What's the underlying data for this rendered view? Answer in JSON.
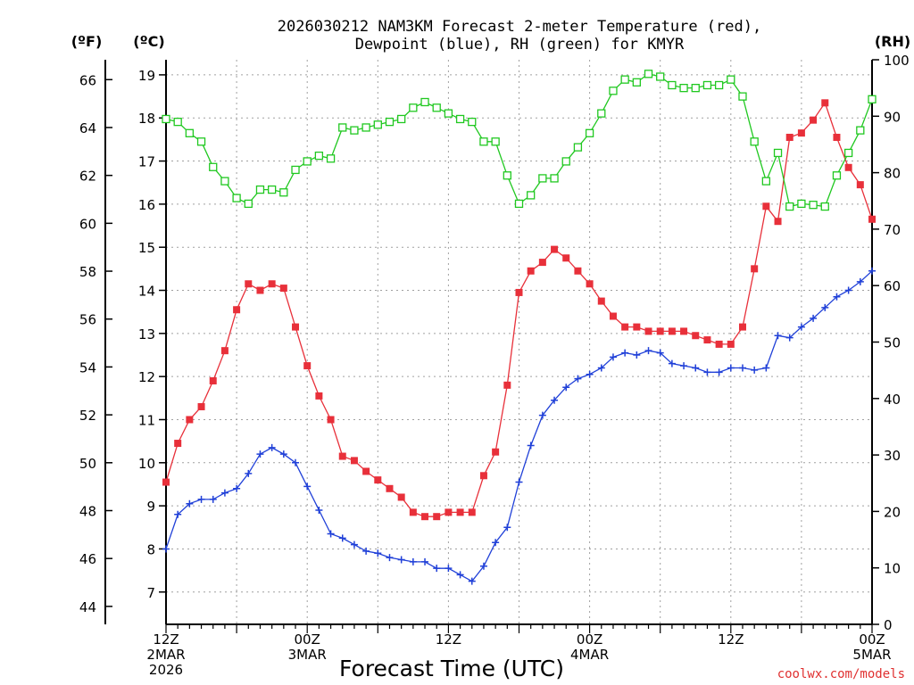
{
  "title_line1": "2026030212 NAM3KM Forecast 2-meter Temperature (red),",
  "title_line2": "Dewpoint (blue), RH (green) for KMYR",
  "xlabel": "Forecast Time (UTC)",
  "credit": "coolwx.com/models",
  "units": {
    "f": "(ºF)",
    "c": "(ºC)",
    "rh": "(RH)"
  },
  "colors": {
    "temp": "#e8303a",
    "dew": "#2040d8",
    "rh": "#20c820"
  },
  "chart_data": {
    "type": "line",
    "x_hours": [
      0,
      1,
      2,
      3,
      4,
      5,
      6,
      7,
      8,
      9,
      10,
      11,
      12,
      13,
      14,
      15,
      16,
      17,
      18,
      19,
      20,
      21,
      22,
      23,
      24,
      25,
      26,
      27,
      28,
      29,
      30,
      31,
      32,
      33,
      34,
      35,
      36,
      37,
      38,
      39,
      40,
      41,
      42,
      43,
      44,
      45,
      46,
      47,
      48,
      49,
      50,
      51,
      52,
      53,
      54,
      55,
      56,
      57,
      58,
      59,
      60
    ],
    "x_ticks": [
      {
        "hour": 0,
        "lines": [
          "12Z",
          "2MAR",
          "2026"
        ]
      },
      {
        "hour": 12,
        "lines": [
          "00Z",
          "3MAR"
        ]
      },
      {
        "hour": 24,
        "lines": [
          "12Z"
        ]
      },
      {
        "hour": 36,
        "lines": [
          "00Z",
          "4MAR"
        ]
      },
      {
        "hour": 48,
        "lines": [
          "12Z"
        ]
      },
      {
        "hour": 60,
        "lines": [
          "00Z",
          "5MAR"
        ]
      }
    ],
    "c_ticks": [
      7,
      8,
      9,
      10,
      11,
      12,
      13,
      14,
      15,
      16,
      17,
      18,
      19
    ],
    "f_ticks": [
      44,
      46,
      48,
      50,
      52,
      54,
      56,
      58,
      60,
      62,
      64,
      66
    ],
    "rh_ticks": [
      0,
      10,
      20,
      30,
      40,
      50,
      60,
      70,
      80,
      90,
      100
    ],
    "c_range": [
      6.25,
      19.35
    ],
    "rh_range": [
      0,
      100
    ],
    "series": [
      {
        "name": "Temperature",
        "axis": "C",
        "marker": "filled-square",
        "values": [
          9.55,
          10.45,
          11.0,
          11.3,
          11.9,
          12.6,
          13.55,
          14.15,
          14.0,
          14.15,
          14.05,
          13.15,
          12.25,
          11.55,
          11.0,
          10.15,
          10.05,
          9.8,
          9.6,
          9.4,
          9.2,
          8.85,
          8.75,
          8.75,
          8.85,
          8.85,
          8.85,
          9.7,
          10.25,
          11.8,
          13.95,
          14.45,
          14.65,
          14.95,
          14.75,
          14.45,
          14.15,
          13.75,
          13.4,
          13.15,
          13.15,
          13.05,
          13.05,
          13.05,
          13.05,
          12.95,
          12.85,
          12.75,
          12.75,
          13.15,
          14.5,
          15.95,
          15.6,
          17.55,
          17.65,
          17.95,
          18.35,
          17.55,
          16.85,
          16.45,
          15.65
        ]
      },
      {
        "name": "Dewpoint",
        "axis": "C",
        "marker": "plus",
        "values": [
          8.0,
          8.8,
          9.05,
          9.15,
          9.15,
          9.3,
          9.4,
          9.75,
          10.2,
          10.35,
          10.2,
          10.0,
          9.45,
          8.9,
          8.35,
          8.25,
          8.1,
          7.95,
          7.9,
          7.8,
          7.75,
          7.7,
          7.7,
          7.55,
          7.55,
          7.4,
          7.25,
          7.6,
          8.15,
          8.5,
          9.55,
          10.4,
          11.1,
          11.45,
          11.75,
          11.95,
          12.05,
          12.2,
          12.45,
          12.55,
          12.5,
          12.6,
          12.55,
          12.3,
          12.25,
          12.2,
          12.1,
          12.1,
          12.2,
          12.2,
          12.15,
          12.2,
          12.95,
          12.9,
          13.15,
          13.35,
          13.6,
          13.85,
          14.0,
          14.2,
          14.45
        ]
      },
      {
        "name": "RH",
        "axis": "RH",
        "marker": "open-square",
        "values": [
          89.5,
          89,
          87,
          85.5,
          81,
          78.5,
          75.5,
          74.5,
          77,
          77,
          76.5,
          80.5,
          82,
          83,
          82.5,
          88,
          87.5,
          88,
          88.5,
          89,
          89.5,
          91.5,
          92.5,
          91.5,
          90.5,
          89.5,
          89,
          85.5,
          85.5,
          79.5,
          74.5,
          76,
          79,
          79,
          82,
          84.5,
          87,
          90.5,
          94.5,
          96.5,
          96,
          97.5,
          97,
          95.5,
          95,
          95,
          95.5,
          95.5,
          96.5,
          93.5,
          85.5,
          78.5,
          83.5,
          74,
          74.5,
          74.3,
          74,
          79.5,
          83.5,
          87.5,
          93
        ]
      }
    ]
  }
}
